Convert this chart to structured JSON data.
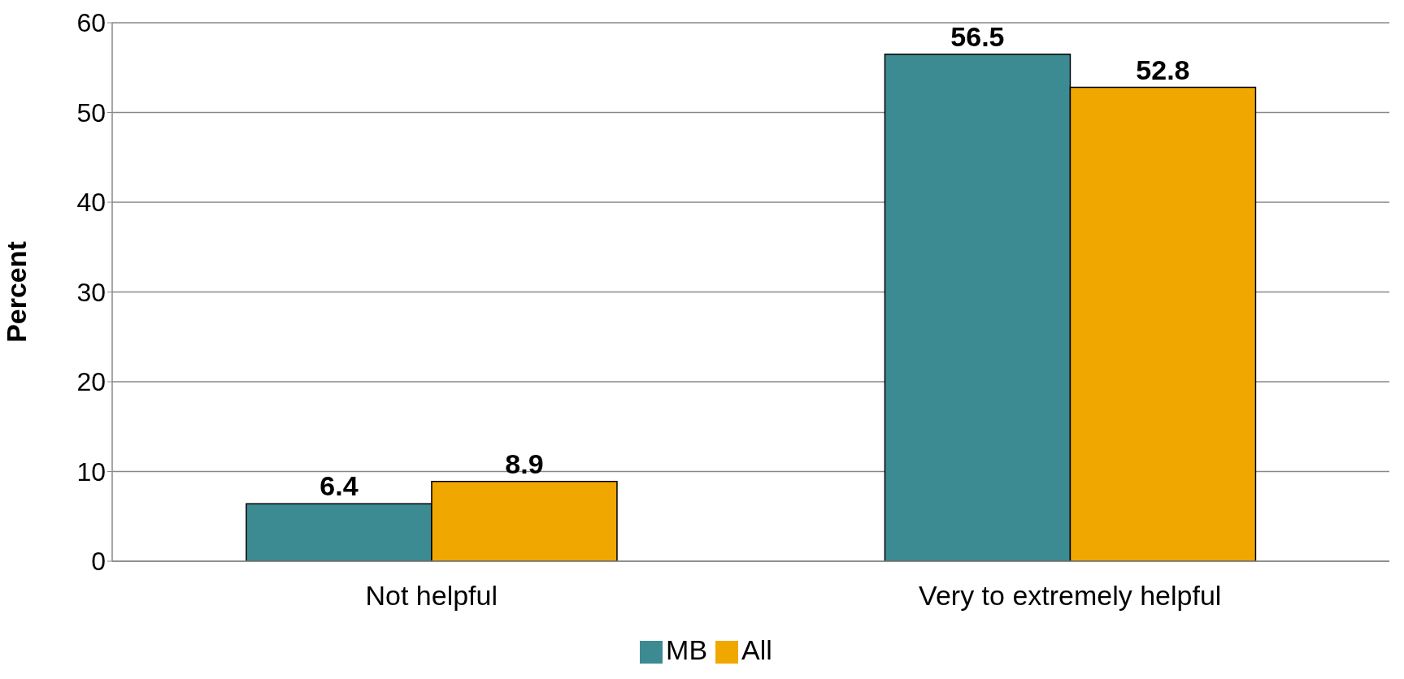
{
  "chart_data": {
    "type": "bar",
    "ylabel": "Percent",
    "categories": [
      "Not helpful",
      "Very to extremely helpful"
    ],
    "series": [
      {
        "name": "MB",
        "color": "#3d8b92",
        "values": [
          6.4,
          56.5
        ]
      },
      {
        "name": "All",
        "color": "#f0a800",
        "values": [
          8.9,
          52.8
        ]
      }
    ],
    "ylim": [
      0,
      60
    ],
    "yticks": [
      0,
      10,
      20,
      30,
      40,
      50,
      60
    ],
    "grid": "y",
    "legend": "bottom",
    "data_labels": true
  }
}
